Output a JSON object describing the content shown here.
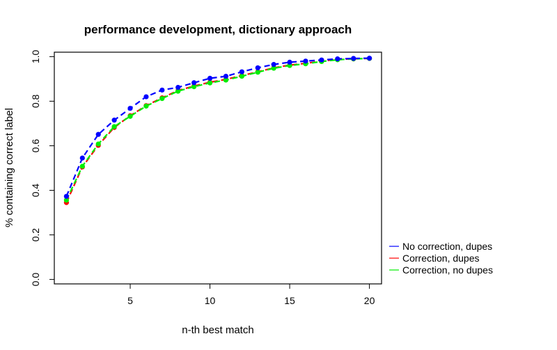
{
  "chart_data": {
    "type": "line",
    "title": "performance development, dictionary approach",
    "xlabel": "n-th best match",
    "ylabel": "% containing correct label",
    "xlim": [
      0.24,
      20.76
    ],
    "ylim": [
      -0.02,
      1.02
    ],
    "xticks": [
      5,
      10,
      15,
      20
    ],
    "yticks": [
      0.0,
      0.2,
      0.4,
      0.6,
      0.8,
      1.0
    ],
    "xtick_labels": [
      "5",
      "10",
      "15",
      "20"
    ],
    "ytick_labels": [
      "0.0",
      "0.2",
      "0.4",
      "0.6",
      "0.8",
      "1.0"
    ],
    "grid": false,
    "legend_position": "outside-right",
    "x": [
      1,
      2,
      3,
      4,
      5,
      6,
      7,
      8,
      9,
      10,
      11,
      12,
      13,
      14,
      15,
      16,
      17,
      18,
      19,
      20
    ],
    "series": [
      {
        "name": "Correction, dupes",
        "color": "#ff0000",
        "values": [
          0.345,
          0.505,
          0.602,
          0.682,
          0.735,
          0.78,
          0.815,
          0.848,
          0.868,
          0.885,
          0.898,
          0.915,
          0.932,
          0.95,
          0.962,
          0.97,
          0.98,
          0.988,
          0.99,
          0.992
        ]
      },
      {
        "name": "Correction, no dupes",
        "color": "#00ee00",
        "values": [
          0.356,
          0.508,
          0.608,
          0.686,
          0.732,
          0.778,
          0.812,
          0.845,
          0.865,
          0.882,
          0.895,
          0.912,
          0.93,
          0.948,
          0.96,
          0.968,
          0.978,
          0.986,
          0.99,
          0.992
        ]
      },
      {
        "name": "No correction, dupes",
        "color": "#0000ff",
        "values": [
          0.373,
          0.545,
          0.651,
          0.715,
          0.768,
          0.82,
          0.85,
          0.862,
          0.883,
          0.903,
          0.912,
          0.932,
          0.95,
          0.965,
          0.975,
          0.98,
          0.985,
          0.99,
          0.992,
          0.993
        ]
      }
    ],
    "legend": [
      {
        "name": "No correction, dupes",
        "color": "#0000ff"
      },
      {
        "name": "Correction, dupes",
        "color": "#ff0000"
      },
      {
        "name": "Correction, no dupes",
        "color": "#00ee00"
      }
    ]
  }
}
